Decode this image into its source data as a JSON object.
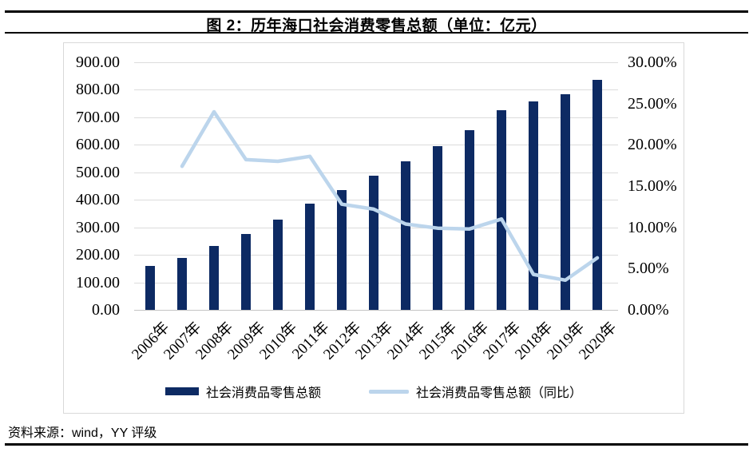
{
  "header": {
    "title": "图 2：历年海口社会消费零售总额（单位：亿元）"
  },
  "footer": {
    "source": "资料来源：wind，YY 评级"
  },
  "colors": {
    "bar": "#0d2a63",
    "line": "#bcd5ec",
    "grid": "#dcdcdc",
    "axis_line": "#c4c4c4",
    "card_border": "#d9d9d9",
    "rule": "#000000"
  },
  "chart_data": {
    "type": "bar",
    "subtype": "combo-bar-line-dual-axis",
    "title": "图 2：历年海口社会消费零售总额（单位：亿元）",
    "categories": [
      "2006年",
      "2007年",
      "2008年",
      "2009年",
      "2010年",
      "2011年",
      "2012年",
      "2013年",
      "2014年",
      "2015年",
      "2016年",
      "2017年",
      "2018年",
      "2019年",
      "2020年"
    ],
    "series": [
      {
        "name": "社会消费品零售总额",
        "type": "bar",
        "axis": "left",
        "color": "#0d2a63",
        "values": [
          160,
          188,
          233,
          276,
          328,
          385,
          436,
          489,
          540,
          594,
          653,
          726,
          757,
          785,
          836
        ]
      },
      {
        "name": "社会消费品零售总额（同比）",
        "type": "line",
        "axis": "right",
        "color": "#bcd5ec",
        "values": [
          null,
          17.4,
          24.0,
          18.2,
          18.0,
          18.6,
          12.8,
          12.2,
          10.4,
          9.9,
          9.8,
          11.0,
          4.3,
          3.6,
          6.3
        ]
      }
    ],
    "left_axis": {
      "min": 0,
      "max": 900,
      "step": 100,
      "ticks": [
        "900.00",
        "800.00",
        "700.00",
        "600.00",
        "500.00",
        "400.00",
        "300.00",
        "200.00",
        "100.00",
        "0.00"
      ]
    },
    "right_axis": {
      "min": 0,
      "max": 30,
      "step": 5,
      "ticks": [
        "30.00%",
        "25.00%",
        "20.00%",
        "15.00%",
        "10.00%",
        "5.00%",
        "0.00%"
      ]
    },
    "grid": true,
    "legend_position": "bottom"
  }
}
